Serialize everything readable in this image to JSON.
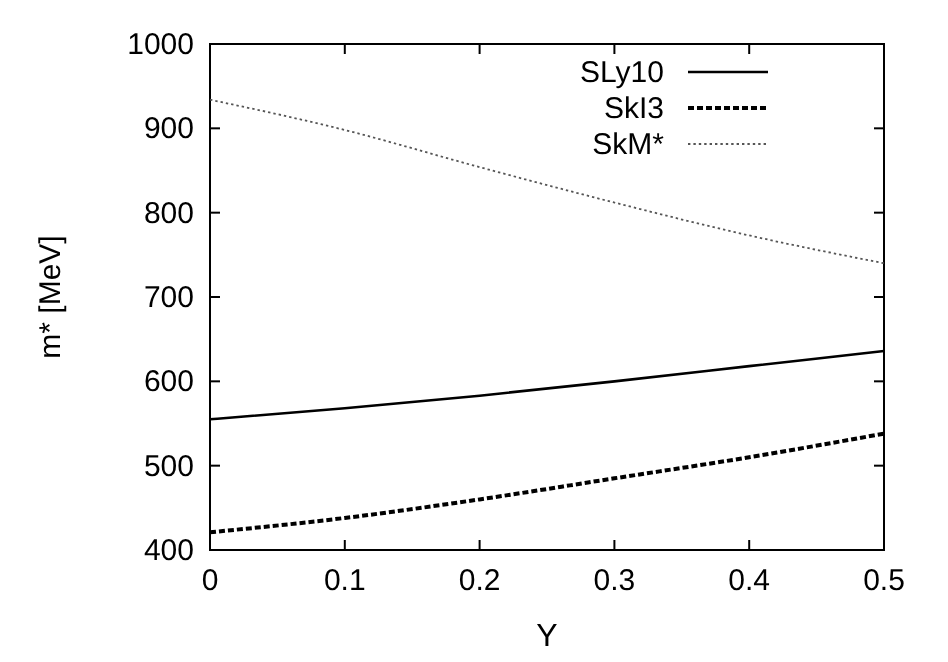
{
  "chart_data": {
    "type": "line",
    "xlabel": "Y",
    "ylabel": "m* [MeV]",
    "xlim": [
      0,
      0.5
    ],
    "ylim": [
      400,
      1000
    ],
    "xticks": [
      0,
      0.1,
      0.2,
      0.3,
      0.4,
      0.5
    ],
    "yticks": [
      400,
      500,
      600,
      700,
      800,
      900,
      1000
    ],
    "legend": "top right",
    "grid": false,
    "x": [
      0,
      0.1,
      0.2,
      0.3,
      0.4,
      0.5
    ],
    "series": [
      {
        "name": "SLy10",
        "color": "#000000",
        "line_style": "solid",
        "values": [
          555,
          568,
          583,
          600,
          618,
          636
        ]
      },
      {
        "name": "SkI3",
        "color": "#000000",
        "line_style": "dashed",
        "values": [
          421,
          438,
          460,
          485,
          510,
          538
        ]
      },
      {
        "name": "SkM*",
        "color": "#555555",
        "line_style": "dotted",
        "values": [
          934,
          898,
          854,
          812,
          773,
          740
        ]
      }
    ]
  }
}
